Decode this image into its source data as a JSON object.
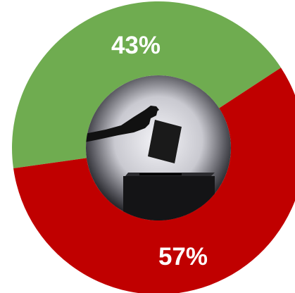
{
  "chart_data": {
    "type": "pie",
    "variant": "donut",
    "categories": [
      "",
      ""
    ],
    "values": [
      43,
      57
    ],
    "labels": [
      "43%",
      "57%"
    ],
    "colors": [
      "#6fac50",
      "#c00000"
    ],
    "title": "",
    "legend": "none"
  },
  "center_image": {
    "icon": "ballot-box-voting-icon",
    "colors": {
      "background_light": "#e8e8ee",
      "background_dark": "#1e1e22",
      "silhouette": "#111111"
    }
  }
}
